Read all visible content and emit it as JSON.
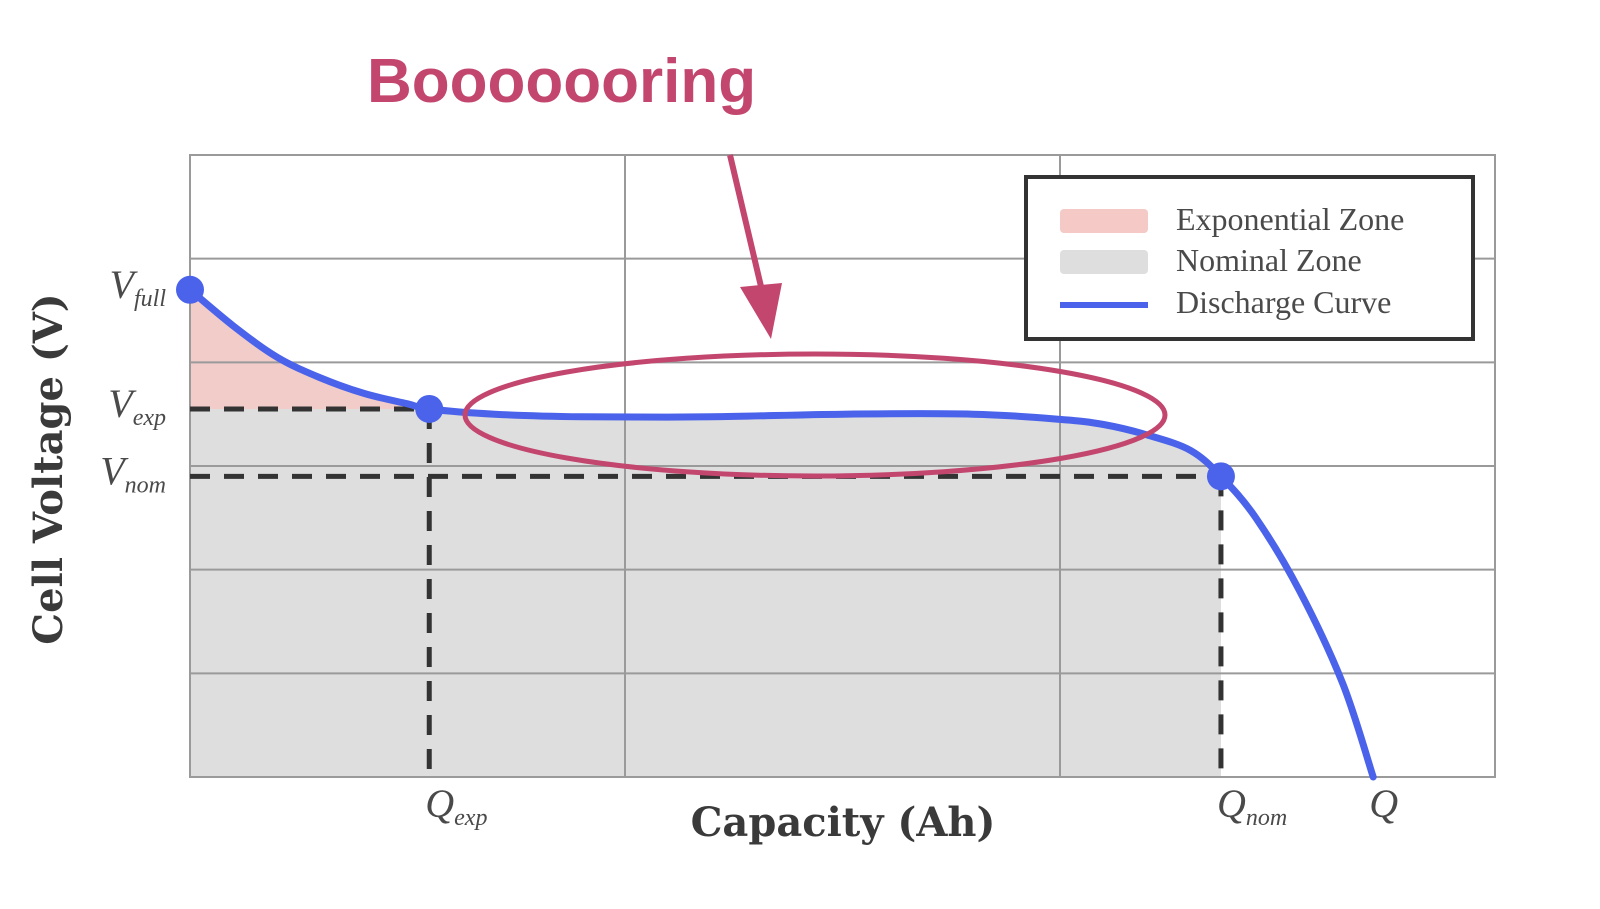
{
  "annotation": {
    "title": "Booooooring",
    "color": "#c3466f"
  },
  "chart_data": {
    "type": "line",
    "title": "",
    "xlabel": "Capacity (Ah)",
    "ylabel": "Cell Voltage (V)",
    "xlim": [
      0,
      3
    ],
    "ylim": [
      0,
      1.2
    ],
    "grid": true,
    "x_ticks": [
      {
        "main": "Q",
        "sub": "exp",
        "x": 0.55
      },
      {
        "main": "Q",
        "sub": "nom",
        "x": 2.37
      },
      {
        "main": "Q",
        "sub": "",
        "x": 2.72
      }
    ],
    "y_ticks": [
      {
        "main": "V",
        "sub": "full",
        "y": 0.94
      },
      {
        "main": "V",
        "sub": "exp",
        "y": 0.71
      },
      {
        "main": "V",
        "sub": "nom",
        "y": 0.58
      }
    ],
    "series": [
      {
        "name": "Discharge Curve",
        "color": "#4a63ea",
        "x": [
          0,
          0.1,
          0.2,
          0.3,
          0.4,
          0.5,
          0.55,
          0.7,
          0.9,
          1.2,
          1.5,
          1.8,
          2.0,
          2.1,
          2.2,
          2.3,
          2.37,
          2.45,
          2.55,
          2.65,
          2.72
        ],
        "y": [
          0.94,
          0.87,
          0.81,
          0.77,
          0.74,
          0.72,
          0.71,
          0.7,
          0.695,
          0.695,
          0.7,
          0.7,
          0.69,
          0.68,
          0.66,
          0.63,
          0.58,
          0.5,
          0.36,
          0.18,
          0.0
        ]
      }
    ],
    "zones": [
      {
        "name": "Exponential Zone",
        "color": "#f4c9c6"
      },
      {
        "name": "Nominal Zone",
        "color": "#dedede"
      }
    ],
    "key_points": [
      {
        "label": "V_full",
        "x": 0,
        "y": 0.94
      },
      {
        "label": "V_exp",
        "x": 0.55,
        "y": 0.71
      },
      {
        "label": "V_nom",
        "x": 2.37,
        "y": 0.58
      }
    ],
    "legend": {
      "position": "top-right",
      "items": [
        {
          "label": "Exponential Zone",
          "kind": "patch",
          "color": "#f4c9c6"
        },
        {
          "label": "Nominal Zone",
          "kind": "patch",
          "color": "#dedede"
        },
        {
          "label": "Discharge Curve",
          "kind": "line",
          "color": "#4a63ea"
        }
      ]
    }
  }
}
